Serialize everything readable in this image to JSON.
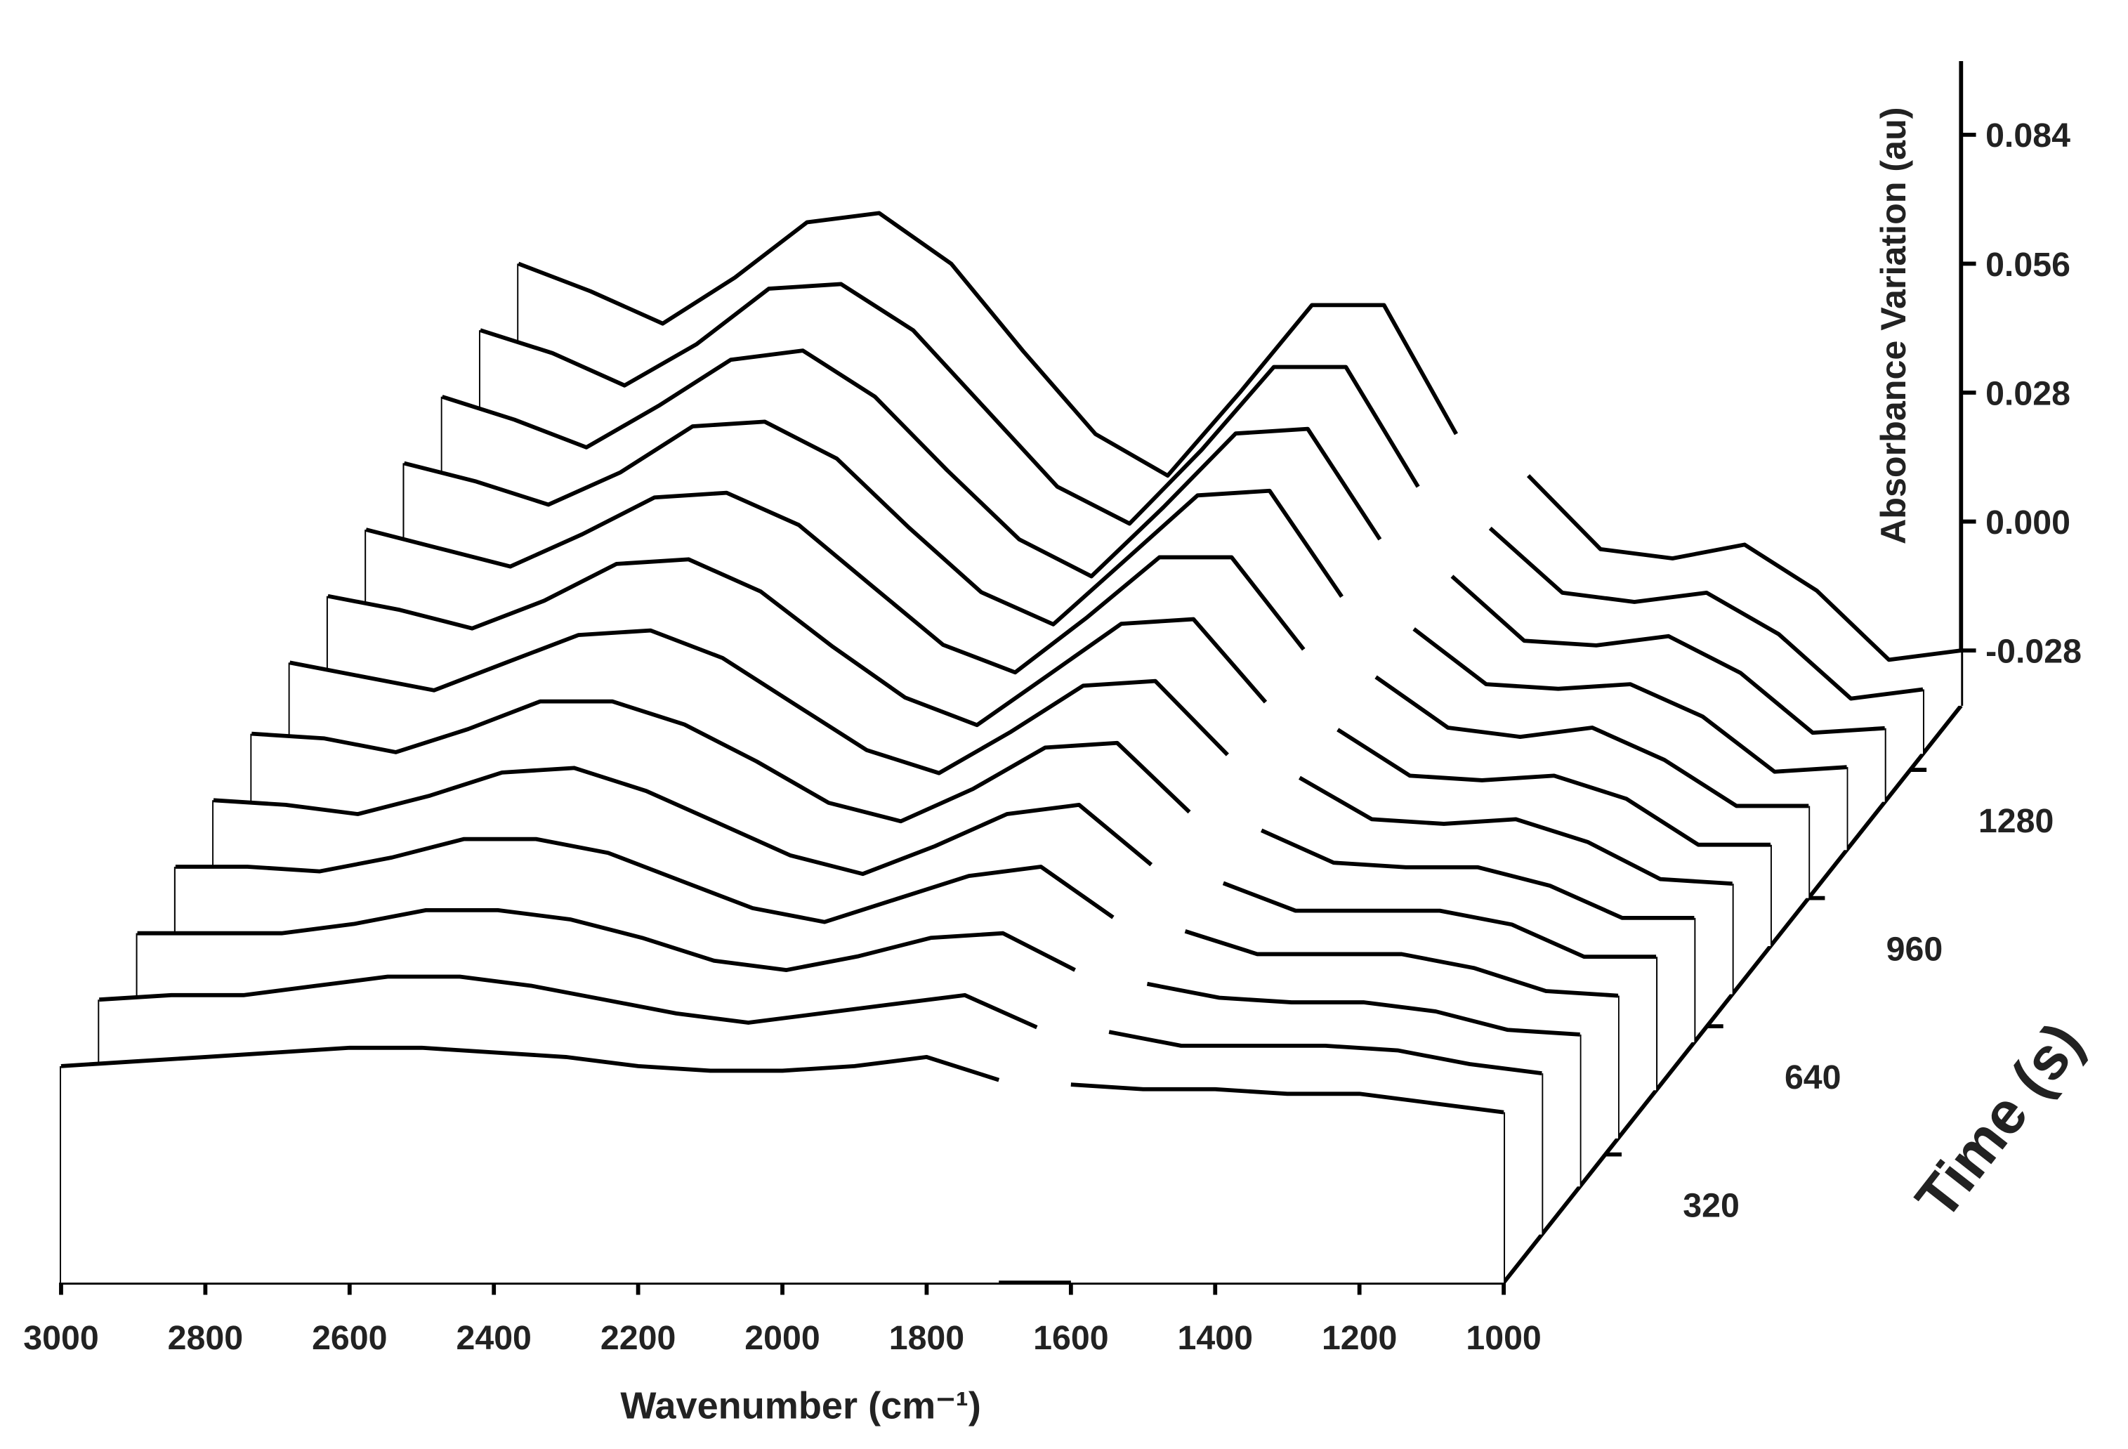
{
  "chart_data": {
    "type": "waterfall",
    "x_label": "Wavenumber (cm⁻¹)",
    "y_label": "Time (s)",
    "z_label": "Absorbance Variation (au)",
    "x": [
      3000,
      2900,
      2800,
      2700,
      2600,
      2500,
      2400,
      2300,
      2200,
      2100,
      2000,
      1900,
      1800,
      1700,
      1650,
      1600,
      1500,
      1400,
      1300,
      1200,
      1100,
      1000
    ],
    "xlim": [
      3000,
      1000
    ],
    "xticks": [
      3000,
      2800,
      2600,
      2400,
      2200,
      2000,
      1800,
      1600,
      1400,
      1200,
      1000
    ],
    "ylim": [
      0,
      1440
    ],
    "yticks": [
      320,
      640,
      960,
      1280
    ],
    "zlim": [
      -0.04,
      0.1
    ],
    "zticks": [
      -0.028,
      {
        "value": 0,
        "label": "0.000"
      },
      0.028,
      0.056,
      0.084
    ],
    "color": "#000000",
    "series": [
      {
        "time": 0,
        "values": [
          0.007,
          0.008,
          0.009,
          0.01,
          0.011,
          0.011,
          0.01,
          0.009,
          0.007,
          0.006,
          0.006,
          0.007,
          0.009,
          0.004,
          null,
          0.003,
          0.002,
          0.002,
          0.001,
          0.001,
          -0.001,
          -0.003
        ]
      },
      {
        "time": 120,
        "values": [
          0.011,
          0.012,
          0.012,
          0.014,
          0.016,
          0.016,
          0.014,
          0.011,
          0.008,
          0.006,
          0.008,
          0.01,
          0.012,
          0.005,
          null,
          0.004,
          0.001,
          0.001,
          0.001,
          0.0,
          -0.003,
          -0.005
        ]
      },
      {
        "time": 240,
        "values": [
          0.015,
          0.015,
          0.015,
          0.017,
          0.02,
          0.02,
          0.018,
          0.014,
          0.009,
          0.007,
          0.01,
          0.014,
          0.015,
          0.007,
          null,
          0.004,
          0.001,
          0.0,
          0.0,
          -0.002,
          -0.006,
          -0.007
        ]
      },
      {
        "time": 360,
        "values": [
          0.019,
          0.019,
          0.018,
          0.021,
          0.025,
          0.025,
          0.022,
          0.016,
          0.01,
          0.007,
          0.012,
          0.017,
          0.019,
          0.008,
          null,
          0.005,
          0.0,
          0.0,
          0.0,
          -0.003,
          -0.008,
          -0.009
        ]
      },
      {
        "time": 480,
        "values": [
          0.023,
          0.022,
          0.02,
          0.024,
          0.029,
          0.03,
          0.025,
          0.018,
          0.011,
          0.007,
          0.013,
          0.02,
          0.022,
          0.009,
          null,
          0.005,
          -0.001,
          -0.001,
          -0.001,
          -0.004,
          -0.011,
          -0.011
        ]
      },
      {
        "time": 600,
        "values": [
          0.027,
          0.026,
          0.023,
          0.028,
          0.034,
          0.034,
          0.029,
          0.021,
          0.012,
          0.008,
          0.015,
          0.024,
          0.025,
          0.01,
          null,
          0.006,
          -0.001,
          -0.002,
          -0.002,
          -0.006,
          -0.013,
          -0.013
        ]
      },
      {
        "time": 720,
        "values": [
          0.032,
          0.029,
          0.026,
          0.032,
          0.038,
          0.039,
          0.033,
          0.023,
          0.013,
          0.008,
          0.017,
          0.027,
          0.028,
          0.012,
          null,
          0.007,
          -0.002,
          -0.003,
          -0.002,
          -0.007,
          -0.015,
          -0.016
        ]
      },
      {
        "time": 840,
        "values": [
          0.036,
          0.033,
          0.029,
          0.035,
          0.043,
          0.044,
          0.037,
          0.025,
          0.014,
          0.008,
          0.019,
          0.03,
          0.031,
          0.013,
          null,
          0.007,
          -0.003,
          -0.004,
          -0.003,
          -0.008,
          -0.018,
          -0.018
        ]
      },
      {
        "time": 960,
        "values": [
          0.04,
          0.036,
          0.032,
          0.039,
          0.047,
          0.048,
          0.041,
          0.028,
          0.015,
          0.009,
          0.021,
          0.034,
          0.034,
          0.014,
          null,
          0.008,
          -0.003,
          -0.005,
          -0.003,
          -0.01,
          -0.02,
          -0.02
        ]
      },
      {
        "time": 1080,
        "values": [
          0.044,
          0.04,
          0.035,
          0.042,
          0.052,
          0.053,
          0.045,
          0.03,
          0.016,
          0.009,
          0.023,
          0.037,
          0.038,
          0.015,
          null,
          0.008,
          -0.004,
          -0.005,
          -0.004,
          -0.011,
          -0.023,
          -0.022
        ]
      },
      {
        "time": 1200,
        "values": [
          0.048,
          0.043,
          0.037,
          0.046,
          0.056,
          0.058,
          0.048,
          0.032,
          0.017,
          0.009,
          0.024,
          0.04,
          0.041,
          0.017,
          null,
          0.009,
          -0.005,
          -0.006,
          -0.004,
          -0.012,
          -0.025,
          -0.024
        ]
      },
      {
        "time": 1320,
        "values": [
          0.052,
          0.047,
          0.04,
          0.049,
          0.061,
          0.062,
          0.052,
          0.035,
          0.018,
          0.01,
          0.026,
          0.044,
          0.044,
          0.018,
          null,
          0.009,
          -0.005,
          -0.007,
          -0.005,
          -0.014,
          -0.028,
          -0.026
        ]
      },
      {
        "time": 1440,
        "values": [
          0.056,
          0.05,
          0.043,
          0.053,
          0.065,
          0.067,
          0.056,
          0.037,
          0.019,
          0.01,
          0.028,
          0.047,
          0.047,
          0.019,
          null,
          0.01,
          -0.006,
          -0.008,
          -0.005,
          -0.015,
          -0.03,
          -0.028
        ]
      }
    ]
  }
}
